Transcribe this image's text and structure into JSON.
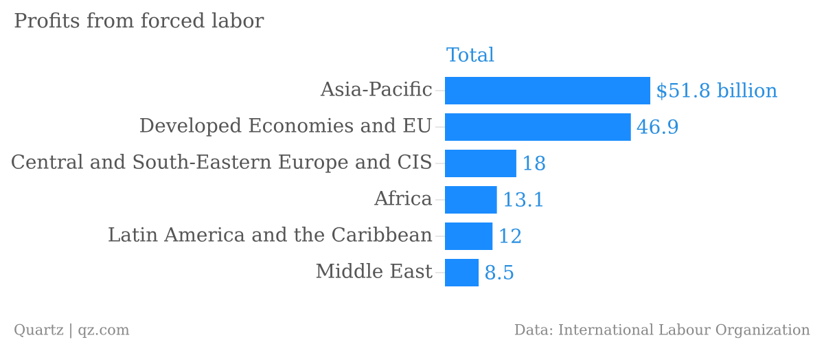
{
  "chart_data": {
    "type": "bar",
    "orientation": "horizontal",
    "title": "Profits from forced labor",
    "categories": [
      "Asia-Pacific",
      "Developed Economies and EU",
      "Central and South-Eastern Europe and CIS",
      "Africa",
      "Latin America and the Caribbean",
      "Middle East"
    ],
    "series": [
      {
        "name": "Total",
        "color": "#1a8cff",
        "values": [
          51.8,
          46.9,
          18,
          13.1,
          12,
          8.5
        ],
        "value_labels": [
          "$51.8 billion",
          "46.9",
          "18",
          "13.1",
          "12",
          "8.5"
        ]
      }
    ],
    "label_color": "#2a8fe0",
    "source_left": "Quartz | qz.com",
    "source_right": "Data: International Labour Organization"
  }
}
